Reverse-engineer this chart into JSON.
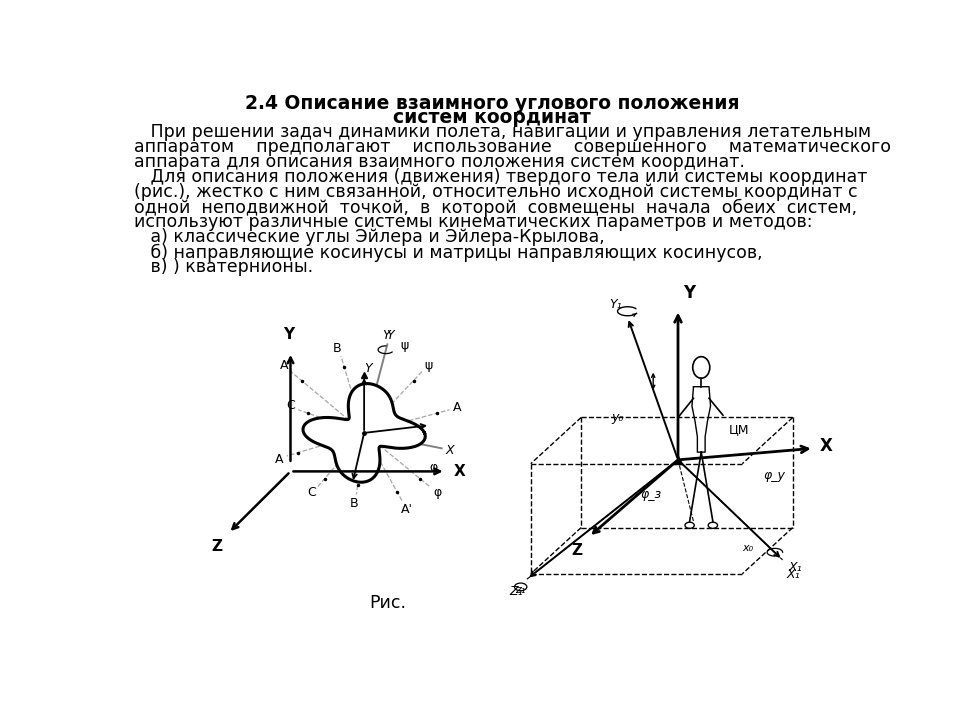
{
  "title_line1": "2.4 Описание взаимного углового положения",
  "title_line2": "систем координат",
  "text_lines": [
    "   При решении задач динамики полета, навигации и управления летательным",
    "аппаратом    предполагают    использование    совершенного    математического",
    "аппарата для описания взаимного положения систем координат.",
    "   Для описания положения (движения) твердого тела или системы координат",
    "(рис.), жестко с ним связанной, относительно исходной системы координат с",
    "одной  неподвижной  точкой,  в  которой  совмещены  начала  обеих  систем,",
    "используют различные системы кинематических параметров и методов:",
    "   а) классические углы Эйлера и Эйлера-Крылова,",
    "   б) направляющие косинусы и матрицы направляющих косинусов,",
    "   в) ) кватернионы."
  ],
  "caption": "Рис.",
  "bg_color": "#ffffff",
  "text_color": "#000000",
  "title_fontsize": 13.5,
  "body_fontsize": 12.5
}
